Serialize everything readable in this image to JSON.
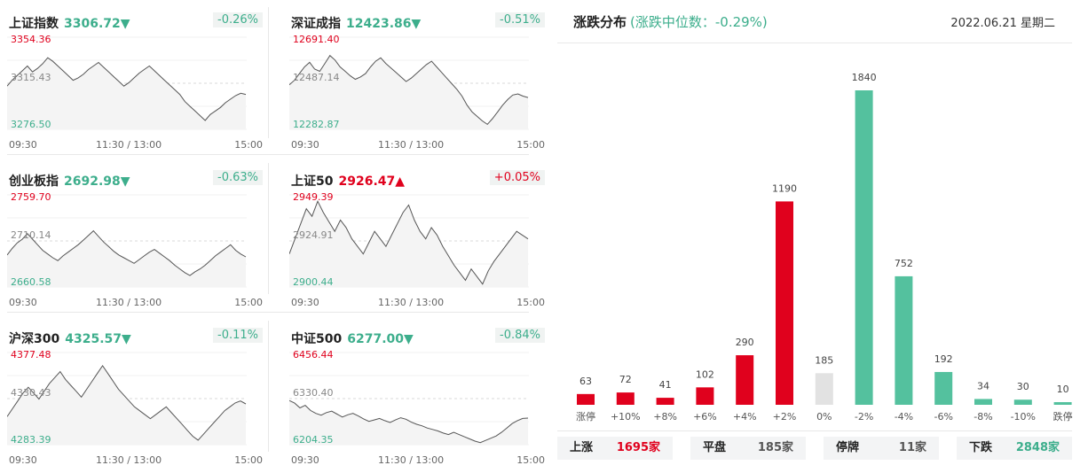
{
  "indices": [
    {
      "name": "上证指数",
      "value": "3306.72",
      "arrow": "▼",
      "change": "-0.26%",
      "dir": "dn",
      "high": "3354.36",
      "mid": "3315.43",
      "low": "3276.50",
      "t_start": "09:30",
      "t_mid": "11:30 / 13:00",
      "t_end": "15:00",
      "series": [
        3313,
        3318,
        3322,
        3326,
        3330,
        3325,
        3328,
        3332,
        3337,
        3334,
        3330,
        3326,
        3322,
        3318,
        3320,
        3323,
        3327,
        3330,
        3333,
        3329,
        3325,
        3321,
        3317,
        3313,
        3316,
        3320,
        3324,
        3327,
        3330,
        3326,
        3322,
        3318,
        3314,
        3310,
        3306,
        3300,
        3296,
        3292,
        3288,
        3284,
        3289,
        3292,
        3295,
        3299,
        3302,
        3305,
        3307,
        3306
      ]
    },
    {
      "name": "深证成指",
      "value": "12423.86",
      "arrow": "▼",
      "change": "-0.51%",
      "dir": "dn",
      "high": "12691.40",
      "mid": "12487.14",
      "low": "12282.87",
      "t_start": "09:30",
      "t_mid": "11:30 / 13:00",
      "t_end": "15:00",
      "series": [
        12480,
        12500,
        12530,
        12560,
        12580,
        12550,
        12540,
        12575,
        12610,
        12590,
        12560,
        12540,
        12520,
        12505,
        12515,
        12530,
        12560,
        12585,
        12600,
        12575,
        12555,
        12535,
        12515,
        12495,
        12510,
        12530,
        12550,
        12570,
        12585,
        12560,
        12535,
        12510,
        12485,
        12460,
        12430,
        12390,
        12360,
        12340,
        12320,
        12305,
        12330,
        12360,
        12390,
        12415,
        12435,
        12440,
        12430,
        12424
      ]
    },
    {
      "name": "创业板指",
      "value": "2692.98",
      "arrow": "▼",
      "change": "-0.63%",
      "dir": "dn",
      "high": "2759.70",
      "mid": "2710.14",
      "low": "2660.58",
      "t_start": "09:30",
      "t_mid": "11:30 / 13:00",
      "t_end": "15:00",
      "series": [
        2695,
        2702,
        2708,
        2712,
        2718,
        2712,
        2706,
        2700,
        2696,
        2692,
        2689,
        2694,
        2698,
        2702,
        2706,
        2711,
        2716,
        2721,
        2715,
        2709,
        2704,
        2699,
        2695,
        2692,
        2689,
        2686,
        2690,
        2694,
        2698,
        2701,
        2697,
        2693,
        2689,
        2684,
        2680,
        2676,
        2673,
        2677,
        2680,
        2684,
        2689,
        2694,
        2698,
        2702,
        2706,
        2700,
        2696,
        2693
      ]
    },
    {
      "name": "上证50",
      "value": "2926.47",
      "arrow": "▲",
      "change": "+0.05%",
      "dir": "up",
      "high": "2949.39",
      "mid": "2924.91",
      "low": "2900.44",
      "t_start": "09:30",
      "t_mid": "11:30 / 13:00",
      "t_end": "15:00",
      "series": [
        2918,
        2926,
        2934,
        2942,
        2938,
        2946,
        2940,
        2935,
        2930,
        2936,
        2932,
        2926,
        2922,
        2918,
        2924,
        2930,
        2926,
        2922,
        2928,
        2934,
        2940,
        2944,
        2936,
        2930,
        2926,
        2932,
        2928,
        2922,
        2917,
        2912,
        2908,
        2904,
        2910,
        2906,
        2902,
        2909,
        2914,
        2918,
        2922,
        2926,
        2930,
        2928,
        2926
      ]
    },
    {
      "name": "沪深300",
      "value": "4325.57",
      "arrow": "▼",
      "change": "-0.11%",
      "dir": "dn",
      "high": "4377.48",
      "mid": "4330.43",
      "low": "4283.39",
      "t_start": "09:30",
      "t_mid": "11:30 / 13:00",
      "t_end": "15:00",
      "series": [
        4312,
        4320,
        4328,
        4336,
        4342,
        4336,
        4330,
        4338,
        4346,
        4352,
        4358,
        4350,
        4344,
        4338,
        4332,
        4340,
        4348,
        4356,
        4364,
        4356,
        4348,
        4340,
        4334,
        4328,
        4322,
        4318,
        4314,
        4310,
        4314,
        4318,
        4322,
        4316,
        4310,
        4304,
        4298,
        4292,
        4288,
        4294,
        4300,
        4306,
        4312,
        4318,
        4322,
        4326,
        4328,
        4325
      ]
    },
    {
      "name": "中证500",
      "value": "6277.00",
      "arrow": "▼",
      "change": "-0.84%",
      "dir": "dn",
      "high": "6456.44",
      "mid": "6330.40",
      "low": "6204.35",
      "t_start": "09:30",
      "t_mid": "11:30 / 13:00",
      "t_end": "15:00",
      "series": [
        6325,
        6318,
        6305,
        6312,
        6298,
        6290,
        6285,
        6292,
        6296,
        6288,
        6280,
        6286,
        6290,
        6283,
        6275,
        6268,
        6272,
        6276,
        6270,
        6265,
        6272,
        6278,
        6274,
        6266,
        6260,
        6256,
        6250,
        6246,
        6242,
        6236,
        6232,
        6238,
        6232,
        6226,
        6220,
        6214,
        6210,
        6216,
        6222,
        6228,
        6238,
        6250,
        6262,
        6270,
        6276,
        6277
      ]
    }
  ],
  "dist": {
    "title": "涨跌分布",
    "subtitle": "(涨跌中位数：-0.29%)",
    "date": "2022.06.21 星期二",
    "colors": {
      "up": "#e0011d",
      "down": "#54c19e",
      "flat": "#e2e2e2"
    },
    "bars": [
      {
        "label": "涨停",
        "value": 63,
        "kind": "up"
      },
      {
        "label": "+10%",
        "value": 72,
        "kind": "up"
      },
      {
        "label": "+8%",
        "value": 41,
        "kind": "up"
      },
      {
        "label": "+6%",
        "value": 102,
        "kind": "up"
      },
      {
        "label": "+4%",
        "value": 290,
        "kind": "up"
      },
      {
        "label": "+2%",
        "value": 1190,
        "kind": "up"
      },
      {
        "label": "0%",
        "value": 185,
        "kind": "flat"
      },
      {
        "label": "-2%",
        "value": 1840,
        "kind": "down"
      },
      {
        "label": "-4%",
        "value": 752,
        "kind": "down"
      },
      {
        "label": "-6%",
        "value": 192,
        "kind": "down"
      },
      {
        "label": "-8%",
        "value": 34,
        "kind": "down"
      },
      {
        "label": "-10%",
        "value": 30,
        "kind": "down"
      },
      {
        "label": "跌停",
        "value": 10,
        "kind": "down"
      }
    ],
    "summary": {
      "up_label": "上涨",
      "up_value": "1695家",
      "flat_label": "平盘",
      "flat_value": "185家",
      "halt_label": "停牌",
      "halt_value": "11家",
      "down_label": "下跌",
      "down_value": "2848家"
    }
  },
  "chart_data": {
    "type": "bar",
    "title": "涨跌分布",
    "categories": [
      "涨停",
      "+10%",
      "+8%",
      "+6%",
      "+4%",
      "+2%",
      "0%",
      "-2%",
      "-4%",
      "-6%",
      "-8%",
      "-10%",
      "跌停"
    ],
    "values": [
      63,
      72,
      41,
      102,
      290,
      1190,
      185,
      1840,
      752,
      192,
      34,
      30,
      10
    ]
  }
}
